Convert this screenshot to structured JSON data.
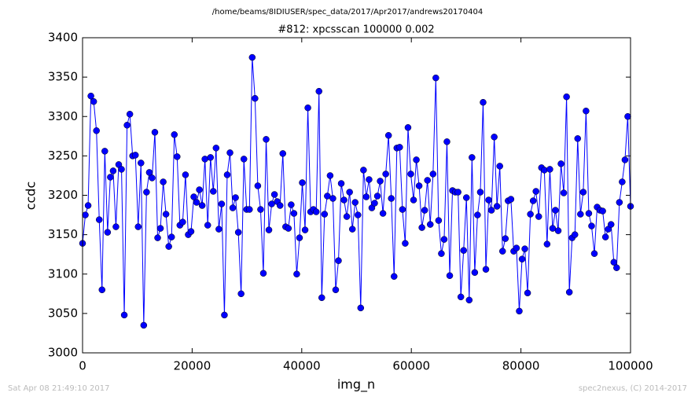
{
  "chart_data": {
    "type": "line",
    "suptitle": "/home/beams/8IDIUSER/spec_data/2017/Apr2017/andrews20170404",
    "title": "#812: xpcsscan 100000 0.002",
    "x_label": "img_n",
    "y_label": "ccdc",
    "footer_left": "Sat Apr 08 21:49:10 2017",
    "footer_right": "spec2nexus, (C) 2014-2017",
    "xlim": [
      0,
      100000
    ],
    "ylim": [
      3000,
      3400
    ],
    "xticks": [
      0,
      20000,
      40000,
      60000,
      80000,
      100000
    ],
    "yticks": [
      3000,
      3050,
      3100,
      3150,
      3200,
      3250,
      3300,
      3350,
      3400
    ],
    "grid": false,
    "x": [
      0,
      508,
      1015,
      1523,
      2030,
      2538,
      3046,
      3553,
      4061,
      4568,
      5076,
      5584,
      6091,
      6599,
      7107,
      7614,
      8122,
      8629,
      9137,
      9645,
      10152,
      10660,
      11167,
      11675,
      12183,
      12690,
      13198,
      13705,
      14213,
      14721,
      15228,
      15736,
      16244,
      16751,
      17259,
      17766,
      18274,
      18782,
      19289,
      19797,
      20304,
      20812,
      21320,
      21827,
      22335,
      22843,
      23350,
      23858,
      24365,
      24873,
      25381,
      25888,
      26396,
      26904,
      27411,
      27919,
      28426,
      28934,
      29442,
      29949,
      30457,
      30964,
      31472,
      31980,
      32487,
      32995,
      33503,
      34010,
      34518,
      35025,
      35533,
      36041,
      36548,
      37056,
      37563,
      38071,
      38579,
      39086,
      39594,
      40102,
      40609,
      41117,
      41624,
      42132,
      42640,
      43147,
      43655,
      44162,
      44670,
      45178,
      45685,
      46193,
      46701,
      47208,
      47716,
      48223,
      48731,
      49239,
      49746,
      50254,
      50761,
      51269,
      51777,
      52284,
      52792,
      53299,
      53807,
      54315,
      54822,
      55330,
      55837,
      56345,
      56853,
      57360,
      57868,
      58376,
      58883,
      59391,
      59898,
      60406,
      60914,
      61421,
      61929,
      62436,
      62944,
      63452,
      63959,
      64467,
      64974,
      65482,
      65990,
      66497,
      67005,
      67512,
      68020,
      68528,
      69035,
      69543,
      70051,
      70558,
      71066,
      71573,
      72081,
      72589,
      73096,
      73604,
      74111,
      74619,
      75127,
      75634,
      76142,
      76649,
      77157,
      77665,
      78172,
      78680,
      79188,
      79695,
      80203,
      80710,
      81218,
      81726,
      82233,
      82741,
      83248,
      83756,
      84264,
      84771,
      85279,
      85786,
      86294,
      86802,
      87309,
      87817,
      88325,
      88832,
      89340,
      89847,
      90355,
      90863,
      91370,
      91878,
      92385,
      92893,
      93401,
      93908,
      94416,
      94923,
      95431,
      95939,
      96446,
      96954,
      97462,
      97969,
      98477,
      98984,
      99492,
      100000
    ],
    "series": [
      {
        "color": "#0000ff",
        "values": [
          3139,
          3175,
          3187,
          3326,
          3319,
          3282,
          3169,
          3080,
          3256,
          3153,
          3223,
          3231,
          3160,
          3239,
          3233,
          3048,
          3289,
          3303,
          3250,
          3251,
          3160,
          3241,
          3035,
          3204,
          3229,
          3222,
          3280,
          3146,
          3158,
          3217,
          3176,
          3135,
          3147,
          3277,
          3249,
          3162,
          3166,
          3226,
          3150,
          3154,
          3198,
          3191,
          3207,
          3187,
          3246,
          3162,
          3248,
          3205,
          3260,
          3157,
          3189,
          3048,
          3226,
          3254,
          3184,
          3197,
          3153,
          3075,
          3246,
          3182,
          3182,
          3375,
          3323,
          3212,
          3182,
          3101,
          3271,
          3156,
          3189,
          3201,
          3192,
          3187,
          3253,
          3160,
          3158,
          3188,
          3177,
          3100,
          3146,
          3216,
          3156,
          3311,
          3179,
          3182,
          3179,
          3332,
          3070,
          3176,
          3199,
          3225,
          3196,
          3080,
          3117,
          3215,
          3194,
          3173,
          3204,
          3157,
          3191,
          3175,
          3057,
          3232,
          3198,
          3220,
          3184,
          3190,
          3199,
          3218,
          3177,
          3227,
          3276,
          3196,
          3097,
          3260,
          3261,
          3182,
          3139,
          3286,
          3227,
          3194,
          3245,
          3212,
          3159,
          3181,
          3219,
          3163,
          3227,
          3349,
          3168,
          3126,
          3144,
          3268,
          3098,
          3206,
          3204,
          3204,
          3071,
          3130,
          3197,
          3067,
          3248,
          3102,
          3175,
          3204,
          3318,
          3106,
          3194,
          3181,
          3274,
          3186,
          3237,
          3129,
          3145,
          3193,
          3195,
          3129,
          3133,
          3053,
          3119,
          3132,
          3076,
          3176,
          3193,
          3205,
          3173,
          3235,
          3232,
          3138,
          3233,
          3158,
          3181,
          3155,
          3240,
          3203,
          3325,
          3077,
          3146,
          3150,
          3272,
          3176,
          3204,
          3307,
          3177,
          3161,
          3126,
          3185,
          3181,
          3180,
          3147,
          3157,
          3163,
          3115,
          3108,
          3191,
          3217,
          3245,
          3300,
          3186
        ]
      }
    ]
  }
}
